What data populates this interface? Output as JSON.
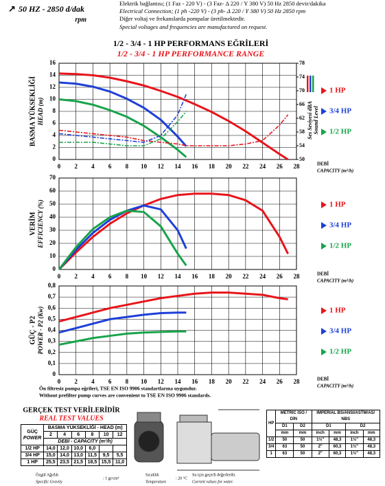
{
  "header": {
    "speed": "50 HZ - 2850 d/dak",
    "speed_unit": "rpm",
    "lines": [
      "Elektrik bağlantısı; (1 Faz - 220 V) - (3 Faz- Δ 220 / Y 380 V) 50 Hz 2850 devir/dakika",
      "Electrical Connection; (1 ph -220 V) - (3 ph- Δ 220 / Y 380 V) 50 Hz 2850 rpm",
      "Diğer voltaj ve frekanslarda pompalar üretilmektedir.",
      "Special voltages and frequencies  are manufactured on request."
    ]
  },
  "title": "1/2 - 3/4 - 1 HP PERFORMANS EĞRİLERİ",
  "subtitle": "1/2 - 3/4 - 1 HP PERFORMANCE RANGE",
  "chart_data": [
    {
      "type": "line",
      "ylabel": [
        "BASMA YÜKSEKLİĞİ",
        "HEAD (m)"
      ],
      "xlabel": [
        "DEBİ",
        "CAPACITY (m³/h)"
      ],
      "y2label": [
        "Ses Seviyesi dBA",
        "Sound Level"
      ],
      "x": [
        0,
        2,
        4,
        6,
        8,
        10,
        12,
        14,
        15,
        16,
        18,
        20,
        22,
        24,
        26,
        27,
        28
      ],
      "xlim": [
        0,
        28
      ],
      "xticks": [
        0,
        2,
        4,
        6,
        8,
        10,
        12,
        14,
        16,
        18,
        20,
        22,
        24,
        26,
        28
      ],
      "ylim": [
        0,
        16
      ],
      "yticks": [
        0,
        2,
        4,
        6,
        8,
        10,
        12,
        14,
        16
      ],
      "y2lim": [
        50,
        78
      ],
      "y2ticks": [
        50,
        54,
        58,
        62,
        66,
        70,
        74,
        78
      ],
      "grid": true,
      "series": [
        {
          "name": "1 HP",
          "color": "#e8141b",
          "values": [
            14.3,
            14.2,
            14.0,
            13.6,
            13.0,
            12.3,
            11.4,
            10.4,
            9.8,
            9.2,
            7.9,
            6.4,
            4.7,
            2.8,
            0.9,
            0,
            null
          ]
        },
        {
          "name": "3/4 HP",
          "color": "#1e3fd8",
          "values": [
            12.8,
            12.6,
            12.1,
            11.3,
            10.1,
            8.6,
            6.6,
            3.8,
            2.2,
            null,
            null,
            null,
            null,
            null,
            null,
            null,
            null
          ]
        },
        {
          "name": "1/2 HP",
          "color": "#18a34a",
          "values": [
            10,
            9.7,
            9.1,
            8.2,
            7.1,
            5.6,
            3.7,
            1.6,
            0.4,
            null,
            null,
            null,
            null,
            null,
            null,
            null,
            null
          ]
        },
        {
          "color": "#e8141b",
          "axis": "y2",
          "dash": true,
          "values": [
            58.5,
            58,
            57.5,
            57,
            56.5,
            55.5,
            55,
            54.5,
            54,
            54,
            54,
            54,
            54.5,
            55.5,
            60,
            63,
            null
          ]
        },
        {
          "color": "#1e3fd8",
          "axis": "y2",
          "dash": true,
          "values": [
            57.5,
            57,
            56.5,
            56,
            55.5,
            55,
            57,
            63,
            69,
            null,
            null,
            null,
            null,
            null,
            null,
            null,
            null
          ]
        },
        {
          "color": "#18a34a",
          "axis": "y2",
          "dash": true,
          "values": [
            55,
            55,
            55,
            54.5,
            54,
            54,
            56,
            61,
            64,
            null,
            null,
            null,
            null,
            null,
            null,
            null,
            null
          ]
        }
      ]
    },
    {
      "type": "line",
      "ylabel": [
        "VERİM",
        "EFFICIENCY (%)"
      ],
      "xlabel": [
        "DEBİ",
        "CAPACITY (m³/h)"
      ],
      "x": [
        0,
        2,
        4,
        6,
        8,
        10,
        12,
        14,
        15,
        16,
        18,
        20,
        22,
        24,
        26,
        27,
        28
      ],
      "xlim": [
        0,
        28
      ],
      "xticks": [
        0,
        2,
        4,
        6,
        8,
        10,
        12,
        14,
        16,
        18,
        20,
        22,
        24,
        26,
        28
      ],
      "ylim": [
        0,
        70
      ],
      "yticks": [
        0,
        10,
        20,
        30,
        40,
        50,
        60,
        70
      ],
      "grid": true,
      "series": [
        {
          "name": "1 HP",
          "color": "#e8141b",
          "values": [
            0,
            13,
            25,
            35,
            43,
            49,
            54,
            57,
            57.5,
            58,
            58,
            57,
            53,
            45,
            25,
            12,
            null
          ]
        },
        {
          "name": "3/4 HP",
          "color": "#1e3fd8",
          "values": [
            0,
            15,
            28,
            38,
            45,
            49,
            46,
            30,
            16,
            null,
            null,
            null,
            null,
            null,
            null,
            null,
            null
          ]
        },
        {
          "name": "1/2 HP",
          "color": "#18a34a",
          "values": [
            0,
            17,
            31,
            40,
            45,
            44,
            33,
            12,
            3,
            null,
            null,
            null,
            null,
            null,
            null,
            null,
            null
          ]
        }
      ]
    },
    {
      "type": "line",
      "ylabel": [
        "GÜÇ - P2",
        "POWER - P2 (Kw)"
      ],
      "xlabel": [
        "DEBİ",
        "CAPACITY (m³/h)"
      ],
      "x": [
        0,
        2,
        4,
        6,
        8,
        10,
        12,
        14,
        15,
        16,
        18,
        20,
        22,
        24,
        26,
        27,
        28
      ],
      "xlim": [
        0,
        28
      ],
      "xticks": [
        0,
        2,
        4,
        6,
        8,
        10,
        12,
        14,
        16,
        18,
        20,
        22,
        24,
        26,
        28
      ],
      "ylim": [
        0,
        0.8
      ],
      "yticks": [
        0,
        {
          "value": 0.1,
          "label": "0,1"
        },
        {
          "value": 0.2,
          "label": "0,2"
        },
        {
          "value": 0.3,
          "label": "0,3"
        },
        {
          "value": 0.4,
          "label": "0,4"
        },
        {
          "value": 0.5,
          "label": "0,5"
        },
        {
          "value": 0.6,
          "label": "0,6"
        },
        {
          "value": 0.7,
          "label": "0,7"
        },
        {
          "value": 0.8,
          "label": "0,8"
        }
      ],
      "grid": true,
      "series": [
        {
          "name": "1 HP",
          "color": "#e8141b",
          "values": [
            0.48,
            0.52,
            0.56,
            0.6,
            0.63,
            0.66,
            0.69,
            0.71,
            0.72,
            0.73,
            0.74,
            0.74,
            0.73,
            0.72,
            0.69,
            0.68,
            null
          ]
        },
        {
          "name": "3/4 HP",
          "color": "#1e3fd8",
          "values": [
            0.38,
            0.42,
            0.46,
            0.5,
            0.52,
            0.54,
            0.555,
            0.56,
            0.56,
            null,
            null,
            null,
            null,
            null,
            null,
            null,
            null
          ]
        },
        {
          "name": "1/2 HP",
          "color": "#18a34a",
          "values": [
            0.27,
            0.3,
            0.33,
            0.35,
            0.37,
            0.38,
            0.385,
            0.39,
            0.39,
            null,
            null,
            null,
            null,
            null,
            null,
            null,
            null
          ]
        }
      ]
    }
  ],
  "notes": [
    "Ön filtresiz pompa eğrileri, TSE EN ISO 9906 standartlarına uygundur.",
    "Without prefilter pump curves are convenient to TSE EN ISO 9906 standards."
  ],
  "test_title": "GERÇEK TEST VERİLERİDİR",
  "test_subtitle": "REAL TEST VALUES",
  "test_table": {
    "power": "GÜÇ",
    "power_en": "POWER",
    "head_label": "BASMA YÜKSEKLİĞİ - HEAD (m)",
    "heads": [
      2,
      4,
      6,
      8,
      10,
      12
    ],
    "capacity_label": "DEBİ - CAPACITY (m³/h)",
    "rows": [
      [
        "1/2 HP",
        "14,0",
        "12,0",
        "10,0",
        "6,0"
      ],
      [
        "3/4 HP",
        "15,0",
        "14,0",
        "13,0",
        "11,5",
        "9,5",
        "5,5"
      ],
      [
        "1 HP",
        "25,5",
        "23,5",
        "21,5",
        "18,5",
        "15,5",
        "11,0"
      ]
    ]
  },
  "dim_table": {
    "hp": "HP",
    "metric": "METRİC ISO / DİN",
    "imperial": "IMPERIAL BS/ANSI/ASTM/AS/ NBS",
    "cols": [
      "D1",
      "D2",
      "D1",
      "D2"
    ],
    "units": [
      "mm",
      "mm",
      "inch",
      "mm",
      "inch",
      "mm"
    ],
    "rows": [
      [
        "1/2",
        "50",
        "50",
        "1½\"",
        "48,3",
        "1½\"",
        "48,3"
      ],
      [
        "3/4",
        "63",
        "50",
        "2\"",
        "60,3",
        "1½\"",
        "48,3"
      ],
      [
        "1",
        "63",
        "50",
        "2\"",
        "60,3",
        "1½\"",
        "48,3"
      ]
    ]
  },
  "footer": {
    "gravity": "Özgül Ağırlık",
    "gravity_en": "Specific Gravity",
    "gravity_value": ": 1 gr/cm³",
    "temp": "Sıcaklık",
    "temp_en": "Temperature",
    "temp_value": ": 20 °C",
    "water": "Su için geçerli değerlerdir.",
    "water_en": "Current values for water."
  }
}
